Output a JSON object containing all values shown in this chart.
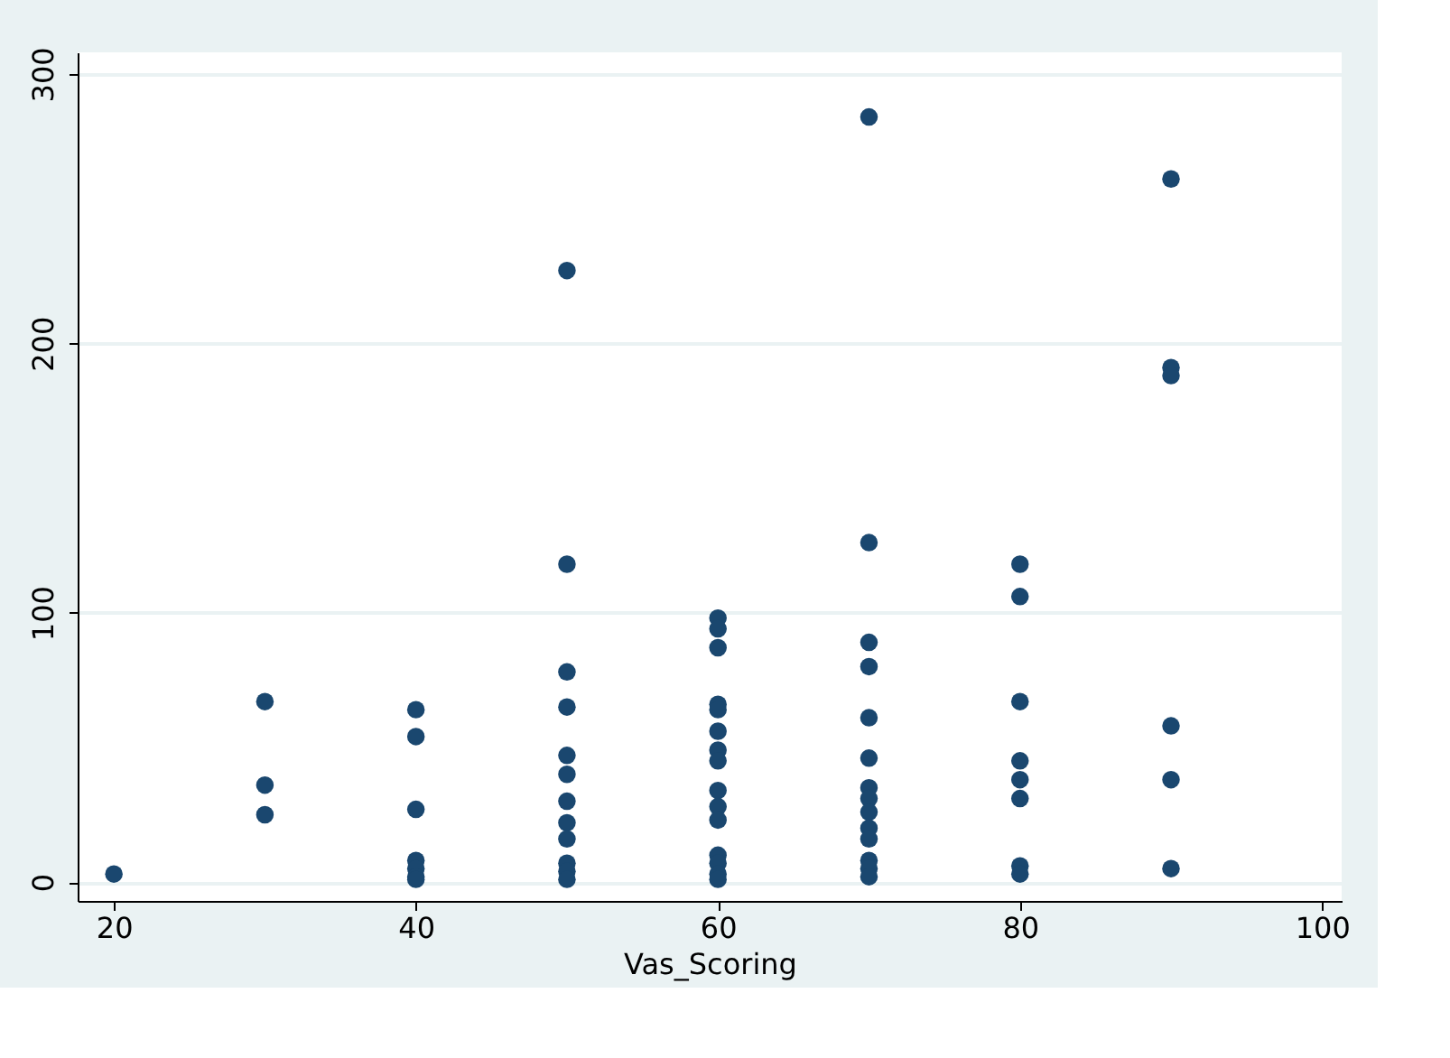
{
  "chart_data": {
    "type": "scatter",
    "xlabel": "Vas_Scoring",
    "x": [
      20,
      30,
      30,
      30,
      40,
      40,
      40,
      40,
      40,
      40,
      40,
      50,
      50,
      50,
      50,
      50,
      50,
      50,
      50,
      50,
      50,
      50,
      50,
      60,
      60,
      60,
      60,
      60,
      60,
      60,
      60,
      60,
      60,
      60,
      60,
      60,
      60,
      60,
      70,
      70,
      70,
      70,
      70,
      70,
      70,
      70,
      70,
      70,
      70,
      70,
      70,
      70,
      80,
      80,
      80,
      80,
      80,
      80,
      80,
      80,
      90,
      90,
      90,
      90,
      90,
      90
    ],
    "values": [
      3,
      67,
      36,
      25,
      64,
      54,
      27,
      8,
      5,
      2,
      1,
      227,
      118,
      78,
      65,
      47,
      40,
      30,
      22,
      16,
      7,
      4,
      1,
      98,
      94,
      87,
      66,
      64,
      56,
      49,
      45,
      34,
      28,
      23,
      10,
      7,
      3,
      1,
      284,
      126,
      89,
      80,
      61,
      46,
      35,
      31,
      26,
      20,
      16,
      8,
      5,
      2,
      118,
      106,
      67,
      45,
      38,
      31,
      6,
      3,
      261,
      191,
      188,
      58,
      38,
      5
    ],
    "color": "#1a476f",
    "marker": "circle",
    "xlim": [
      17.6,
      101.3
    ],
    "ylim": [
      -7,
      308
    ],
    "xticks": [
      20,
      40,
      60,
      80,
      100
    ],
    "yticks": [
      0,
      100,
      200,
      300
    ],
    "grid": "y"
  }
}
